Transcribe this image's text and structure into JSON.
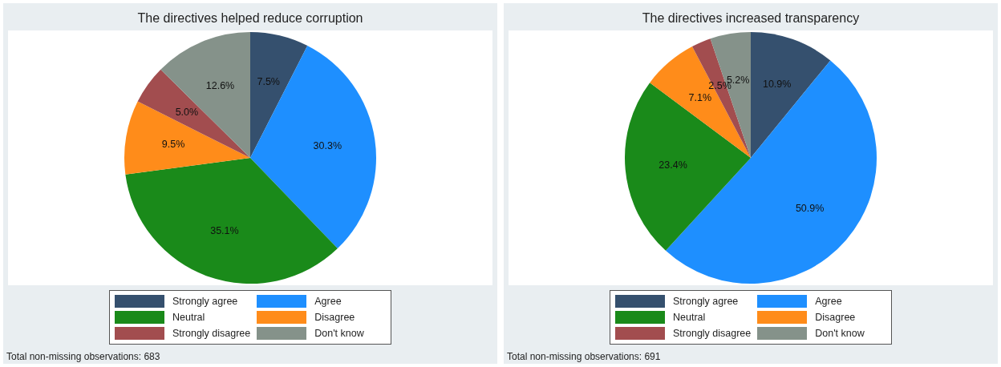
{
  "chart_data": [
    {
      "type": "pie",
      "title": "The directives helped reduce corruption",
      "categories": [
        "Strongly agree",
        "Agree",
        "Neutral",
        "Disagree",
        "Strongly disagree",
        "Don't know"
      ],
      "values": [
        7.5,
        30.3,
        35.1,
        9.5,
        5.0,
        12.6
      ],
      "value_labels": [
        "7.5%",
        "30.3%",
        "35.1%",
        "9.5%",
        "5.0%",
        "12.6%"
      ],
      "colors": [
        "#35506e",
        "#1e8fff",
        "#1a8a1a",
        "#ff8c1a",
        "#a24d4f",
        "#85928a"
      ],
      "legend": "bottom",
      "annotations": [
        "Total non-missing observations: 683"
      ]
    },
    {
      "type": "pie",
      "title": "The directives increased transparency",
      "categories": [
        "Strongly agree",
        "Agree",
        "Neutral",
        "Disagree",
        "Strongly disagree",
        "Don't know"
      ],
      "values": [
        10.9,
        50.9,
        23.4,
        7.1,
        2.5,
        5.2
      ],
      "value_labels": [
        "10.9%",
        "50.9%",
        "23.4%",
        "7.1%",
        "2.5%",
        "5.2%"
      ],
      "colors": [
        "#35506e",
        "#1e8fff",
        "#1a8a1a",
        "#ff8c1a",
        "#a24d4f",
        "#85928a"
      ],
      "legend": "bottom",
      "annotations": [
        "Total non-missing observations: 691"
      ]
    }
  ]
}
